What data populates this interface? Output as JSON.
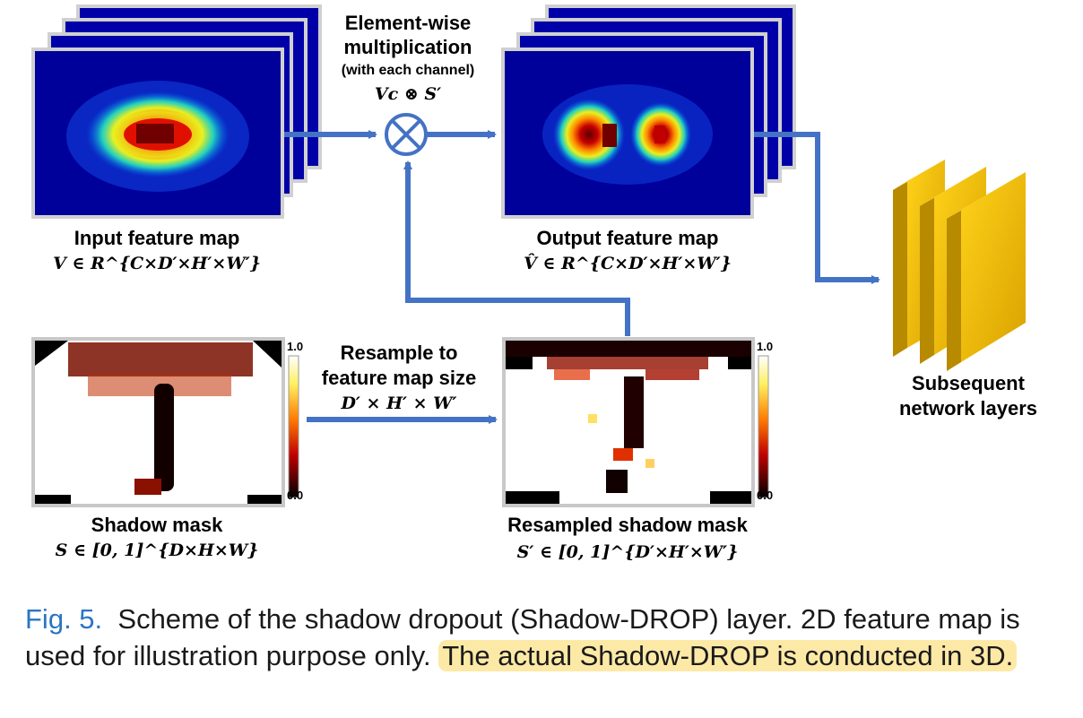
{
  "top_mult": {
    "line1": "Element-wise",
    "line2": "multiplication",
    "line3": "(with each channel)",
    "formula": "Vc ⊗ S′"
  },
  "input_map": {
    "title": "Input feature map",
    "formula": "V ∈ R^{C×D′×H′×W′}"
  },
  "output_map": {
    "title": "Output feature map",
    "formula": "V̂ ∈ R^{C×D′×H′×W′}"
  },
  "subsequent": {
    "line1": "Subsequent",
    "line2": "network layers"
  },
  "resample": {
    "line1": "Resample to",
    "line2": "feature map size",
    "formula": "D′ × H′ × W′"
  },
  "shadow_mask": {
    "title": "Shadow mask",
    "formula": "S ∈ [0, 1]^{D×H×W}"
  },
  "resampled_mask": {
    "title": "Resampled shadow mask",
    "formula": "S′ ∈ [0, 1]^{D′×H′×W′}"
  },
  "colorbar": {
    "max": "1.0",
    "min": "0.0"
  },
  "caption": {
    "fig_no": "Fig. 5.",
    "text": "Scheme of the shadow dropout (Shadow-DROP) layer. 2D feature map is used for illustration purpose only.",
    "highlight": "The actual Shadow-DROP is conducted in 3D."
  },
  "colors": {
    "arrow": "#4472c4",
    "map_bg": "#0000a8",
    "block": "#f2c100",
    "caption_fig": "#2a76c4",
    "highlight": "#fde9a6"
  }
}
